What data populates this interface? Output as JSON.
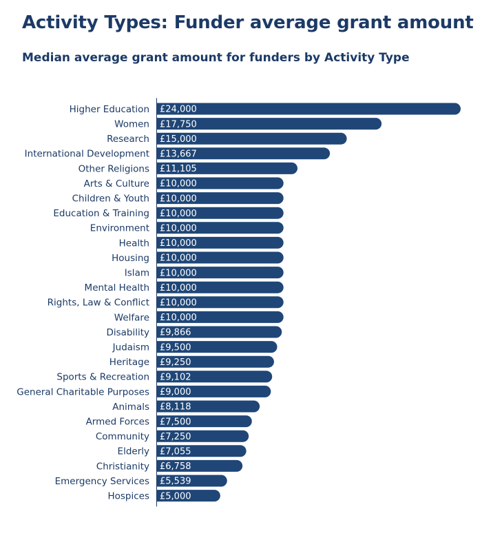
{
  "title": "Activity Types: Funder average grant amount",
  "subtitle": "Median average grant amount for funders by Activity Type",
  "colors": {
    "bar": "#1f4677",
    "text": "#1c3a66",
    "axis": "#1c3a66",
    "bar_label": "#ffffff"
  },
  "chart_data": {
    "type": "bar",
    "orientation": "horizontal",
    "title": "Activity Types: Funder average grant amount",
    "subtitle": "Median average grant amount for funders by Activity Type",
    "xlim": [
      0,
      24000
    ],
    "grid": false,
    "legend": "none",
    "categories": [
      "Higher Education",
      "Women",
      "Research",
      "International Development",
      "Other Religions",
      "Arts & Culture",
      "Children & Youth",
      "Education & Training",
      "Environment",
      "Health",
      "Housing",
      "Islam",
      "Mental Health",
      "Rights, Law & Conflict",
      "Welfare",
      "Disability",
      "Judaism",
      "Heritage",
      "Sports & Recreation",
      "General Charitable Purposes",
      "Animals",
      "Armed Forces",
      "Community",
      "Elderly",
      "Christianity",
      "Emergency Services",
      "Hospices"
    ],
    "values": [
      24000,
      17750,
      15000,
      13667,
      11105,
      10000,
      10000,
      10000,
      10000,
      10000,
      10000,
      10000,
      10000,
      10000,
      10000,
      9866,
      9500,
      9250,
      9102,
      9000,
      8118,
      7500,
      7250,
      7055,
      6758,
      5539,
      5000
    ],
    "value_labels": [
      "£24,000",
      "£17,750",
      "£15,000",
      "£13,667",
      "£11,105",
      "£10,000",
      "£10,000",
      "£10,000",
      "£10,000",
      "£10,000",
      "£10,000",
      "£10,000",
      "£10,000",
      "£10,000",
      "£10,000",
      "£9,866",
      "£9,500",
      "£9,250",
      "£9,102",
      "£9,000",
      "£8,118",
      "£7,500",
      "£7,250",
      "£7,055",
      "£6,758",
      "£5,539",
      "£5,000"
    ]
  }
}
